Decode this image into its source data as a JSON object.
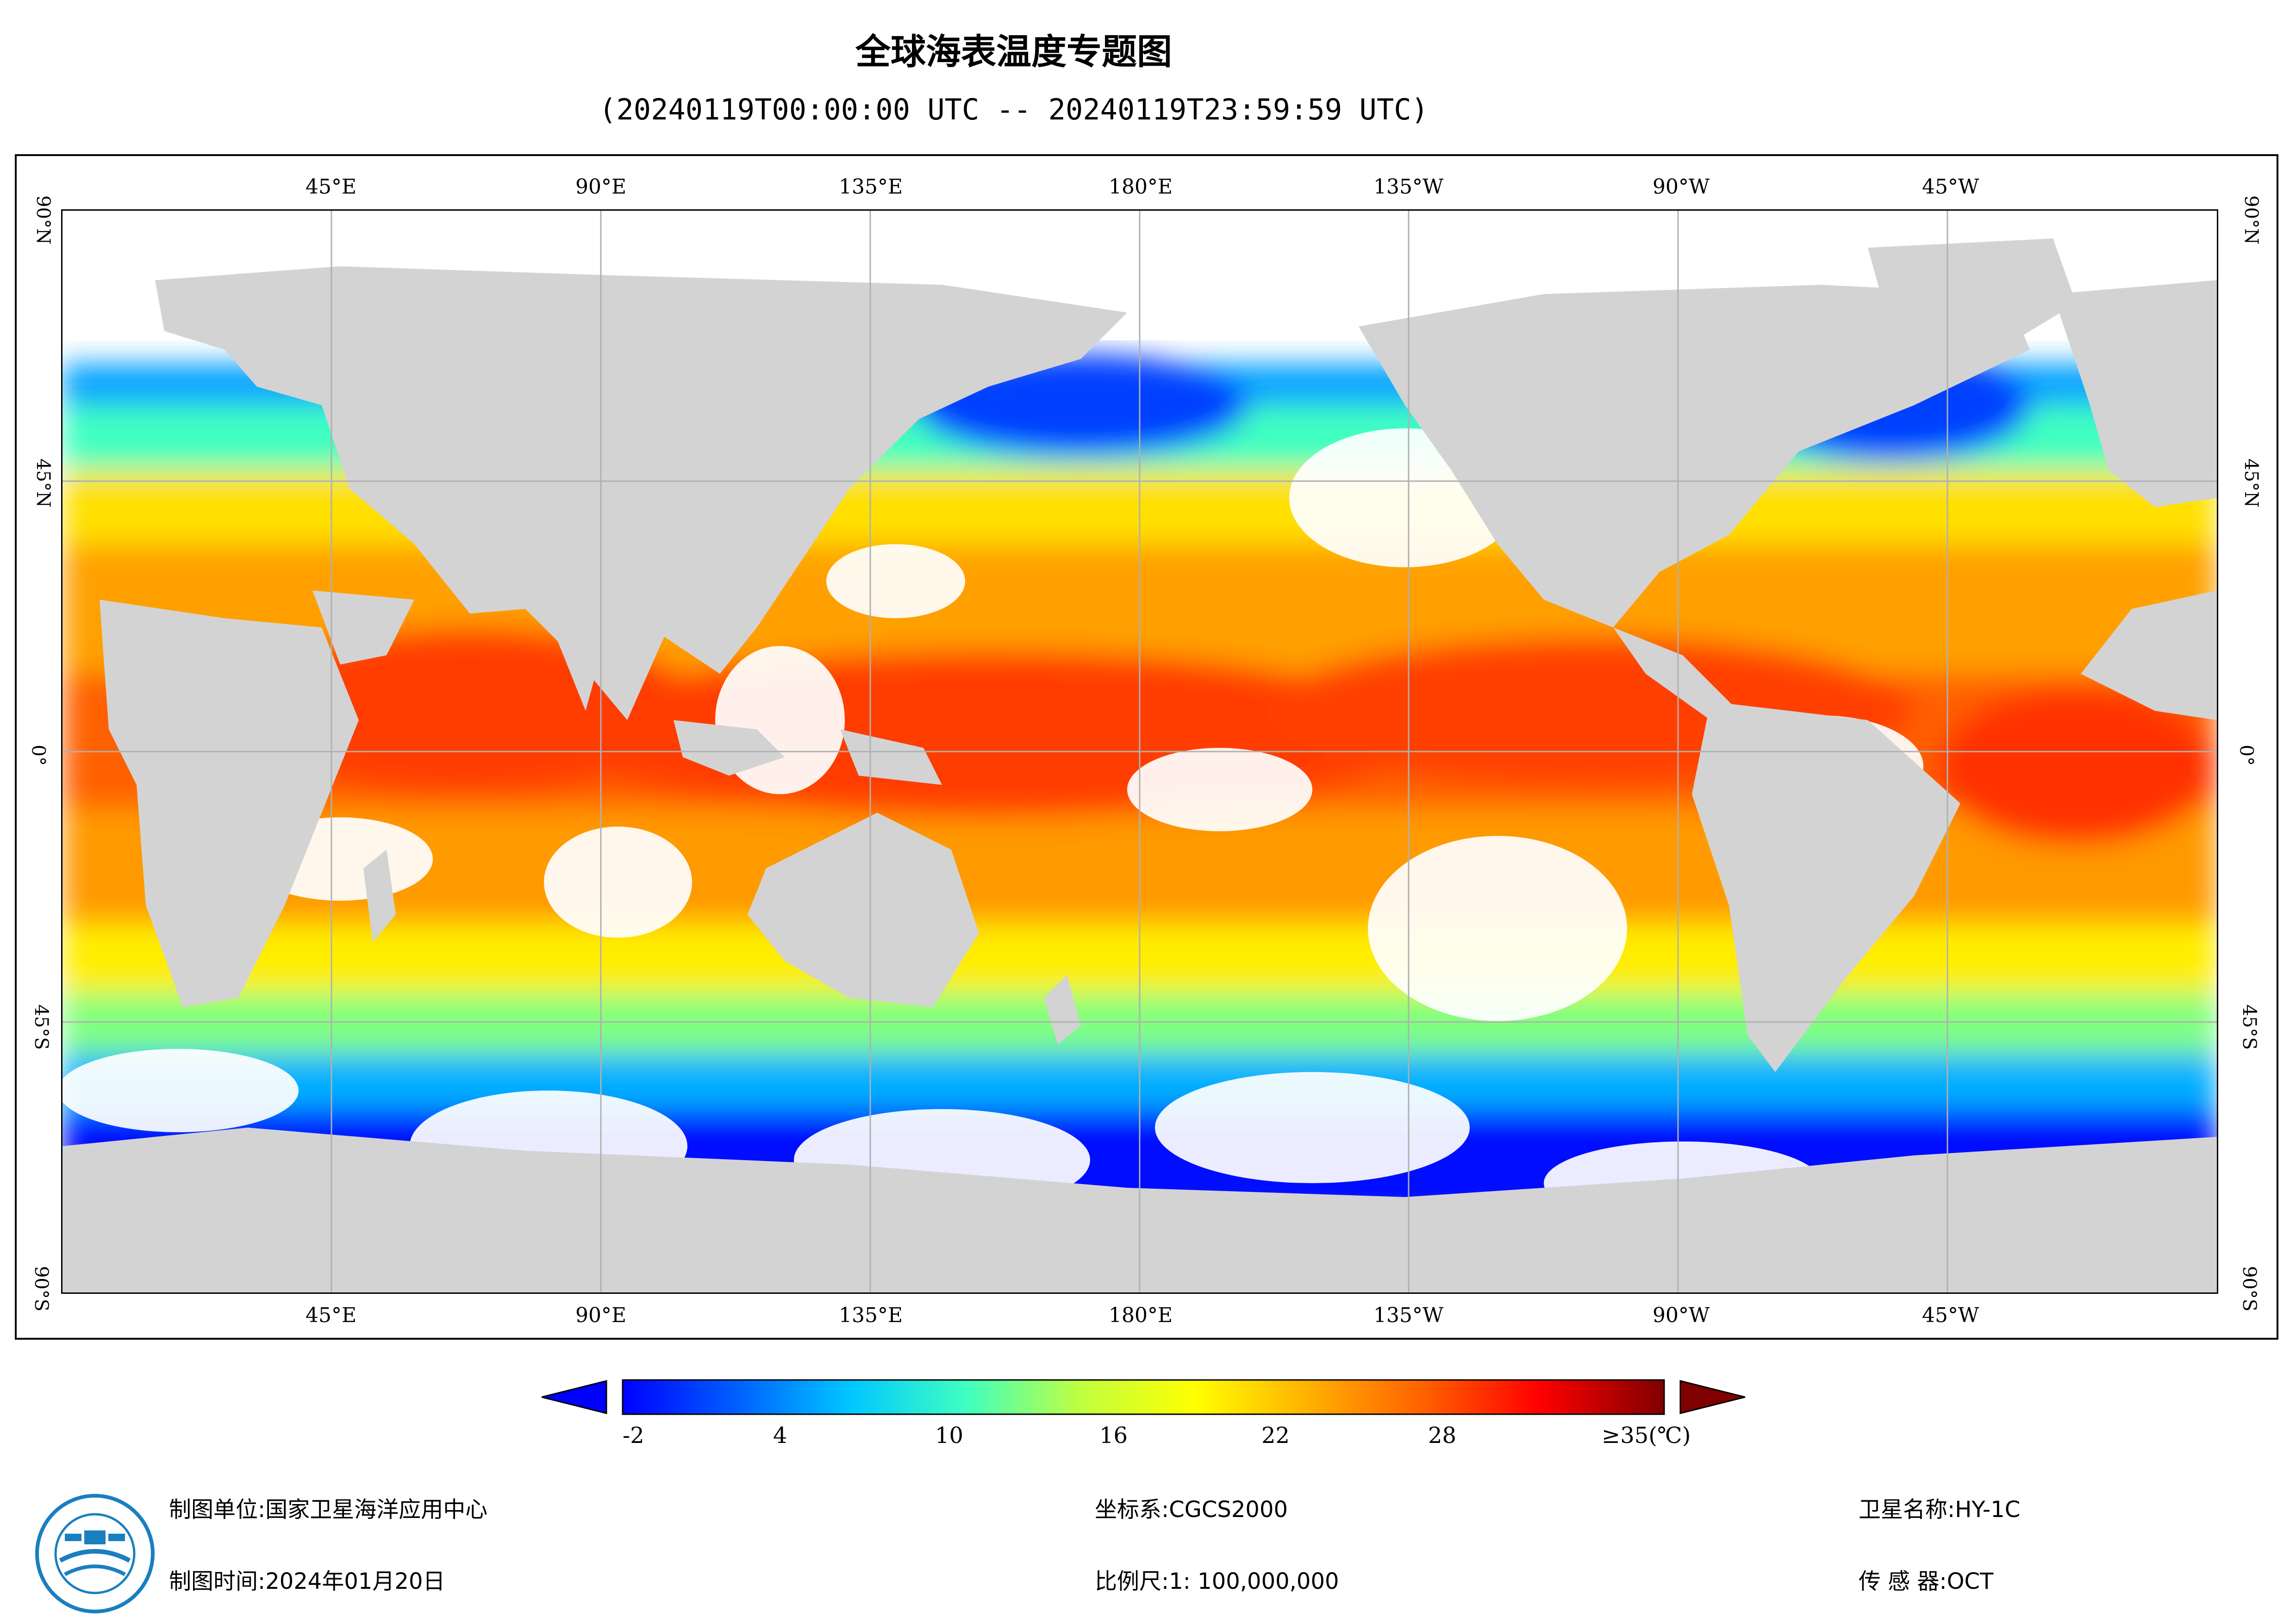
{
  "title": "全球海表温度专题图",
  "subtitle": "(20240119T00:00:00 UTC -- 20240119T23:59:59 UTC)",
  "axes": {
    "top_labels": [
      "45°E",
      "90°E",
      "135°E",
      "180°E",
      "135°W",
      "90°W",
      "45°W"
    ],
    "bottom_labels": [
      "45°E",
      "90°E",
      "135°E",
      "180°E",
      "135°W",
      "90°W",
      "45°W"
    ],
    "left_labels": [
      "90°N",
      "45°N",
      "0°",
      "45°S",
      "90°S"
    ],
    "right_labels": [
      "90°N",
      "45°N",
      "0°",
      "45°S",
      "90°S"
    ],
    "lon_range": [
      0,
      360
    ],
    "lat_range": [
      -90,
      90
    ]
  },
  "colorbar": {
    "ticks": [
      "-2",
      "4",
      "10",
      "16",
      "22",
      "28"
    ],
    "tick_values": [
      -2,
      4,
      10,
      16,
      22,
      28
    ],
    "max_label": "≥35(℃)",
    "range": [
      -2,
      35
    ],
    "colors": [
      "#0000ff",
      "#0060ff",
      "#00c8ff",
      "#40ffc0",
      "#c0ff40",
      "#ffff00",
      "#ffb000",
      "#ff6000",
      "#ff0000",
      "#800000"
    ]
  },
  "colors": {
    "land": "#d3d3d3",
    "grid": "#b0b0b0",
    "no_data": "#ffffff"
  },
  "footer": {
    "unit_label": "制图单位:",
    "unit_value": "国家卫星海洋应用中心",
    "time_label": "制图时间:",
    "time_value": "2024年01月20日",
    "crs_label": "坐标系:",
    "crs_value": "CGCS2000",
    "scale_label": "比例尺:",
    "scale_value": "1: 100,000,000",
    "satellite_label": "卫星名称:",
    "satellite_value": "HY-1C",
    "sensor_label": "传 感 器:",
    "sensor_value": "OCT"
  }
}
